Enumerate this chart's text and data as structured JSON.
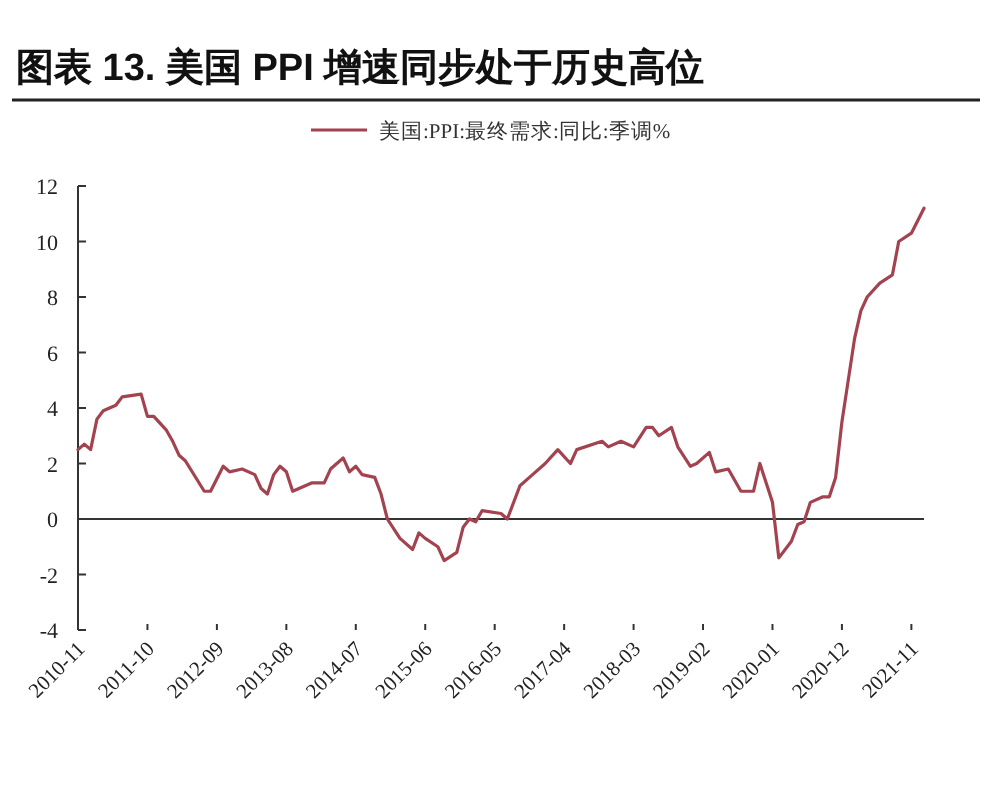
{
  "chart_data": {
    "type": "line",
    "title": "图表 13. 美国 PPI 增速同步处于历史高位",
    "x": [
      "2010-11",
      "2010-12",
      "2011-01",
      "2011-02",
      "2011-03",
      "2011-05",
      "2011-06",
      "2011-09",
      "2011-10",
      "2011-11",
      "2012-01",
      "2012-02",
      "2012-03",
      "2012-04",
      "2012-07",
      "2012-08",
      "2012-10",
      "2012-11",
      "2013-01",
      "2013-03",
      "2013-04",
      "2013-05",
      "2013-06",
      "2013-07",
      "2013-08",
      "2013-09",
      "2013-12",
      "2014-02",
      "2014-03",
      "2014-05",
      "2014-06",
      "2014-07",
      "2014-08",
      "2014-10",
      "2014-11",
      "2014-12",
      "2015-02",
      "2015-04",
      "2015-05",
      "2015-06",
      "2015-08",
      "2015-09",
      "2015-11",
      "2015-12",
      "2016-01",
      "2016-02",
      "2016-03",
      "2016-06",
      "2016-07",
      "2016-09",
      "2016-11",
      "2017-01",
      "2017-03",
      "2017-05",
      "2017-06",
      "2017-10",
      "2017-11",
      "2018-01",
      "2018-03",
      "2018-05",
      "2018-06",
      "2018-07",
      "2018-09",
      "2018-10",
      "2018-12",
      "2019-01",
      "2019-03",
      "2019-04",
      "2019-06",
      "2019-08",
      "2019-10",
      "2019-11",
      "2020-01",
      "2020-02",
      "2020-04",
      "2020-05",
      "2020-06",
      "2020-07",
      "2020-09",
      "2020-10",
      "2020-11",
      "2020-12",
      "2021-02",
      "2021-03",
      "2021-04",
      "2021-06",
      "2021-08",
      "2021-09",
      "2021-11",
      "2022-01"
    ],
    "series": [
      {
        "name": "美国:PPI:最终需求:同比:季调%",
        "color": "#a3434f",
        "values": [
          2.5,
          2.7,
          2.5,
          3.6,
          3.9,
          4.1,
          4.4,
          4.5,
          3.7,
          3.7,
          3.2,
          2.8,
          2.3,
          2.1,
          1.0,
          1.0,
          1.9,
          1.7,
          1.8,
          1.6,
          1.1,
          0.9,
          1.6,
          1.9,
          1.7,
          1.0,
          1.3,
          1.3,
          1.8,
          2.2,
          1.7,
          1.9,
          1.6,
          1.5,
          0.9,
          0,
          -0.7,
          -1.1,
          -0.5,
          -0.7,
          -1.0,
          -1.5,
          -1.2,
          -0.3,
          0,
          -0.1,
          0.3,
          0.2,
          0,
          1.2,
          1.6,
          2.0,
          2.5,
          2.0,
          2.5,
          2.8,
          2.6,
          2.8,
          2.6,
          3.3,
          3.3,
          3.0,
          3.3,
          2.6,
          1.9,
          2.0,
          2.4,
          1.7,
          1.8,
          1.0,
          1.0,
          2.0,
          0.6,
          -1.4,
          -0.8,
          -0.2,
          -0.1,
          0.6,
          0.8,
          0.8,
          1.5,
          3.5,
          6.5,
          7.5,
          8.0,
          8.5,
          8.8,
          10.0,
          10.3,
          11.2
        ]
      }
    ],
    "xlim": [
      "2010-11",
      "2022-01"
    ],
    "xticks": [
      {
        "value": "2010-11",
        "label": "2010-11"
      },
      {
        "value": "2011-10",
        "label": "2011-10"
      },
      {
        "value": "2012-09",
        "label": "2012-09"
      },
      {
        "value": "2013-08",
        "label": "2013-08"
      },
      {
        "value": "2014-07",
        "label": "2014-07"
      },
      {
        "value": "2015-06",
        "label": "2015-06"
      },
      {
        "value": "2016-05",
        "label": "2016-05"
      },
      {
        "value": "2017-04",
        "label": "2017-04"
      },
      {
        "value": "2018-03",
        "label": "2018-03"
      },
      {
        "value": "2019-02",
        "label": "2019-02"
      },
      {
        "value": "2020-01",
        "label": "2020-01"
      },
      {
        "value": "2020-12",
        "label": "2020-12"
      },
      {
        "value": "2021-11",
        "label": "2021-11"
      }
    ],
    "ylim": [
      -4,
      12
    ],
    "yticks": [
      -4,
      -2,
      0,
      2,
      4,
      6,
      8,
      10,
      12
    ],
    "ref_lines": [
      {
        "axis": "y",
        "value": 0,
        "color": "#333333"
      }
    ],
    "grid": false,
    "legend": "top",
    "marker": "none",
    "line_style": "solid"
  }
}
